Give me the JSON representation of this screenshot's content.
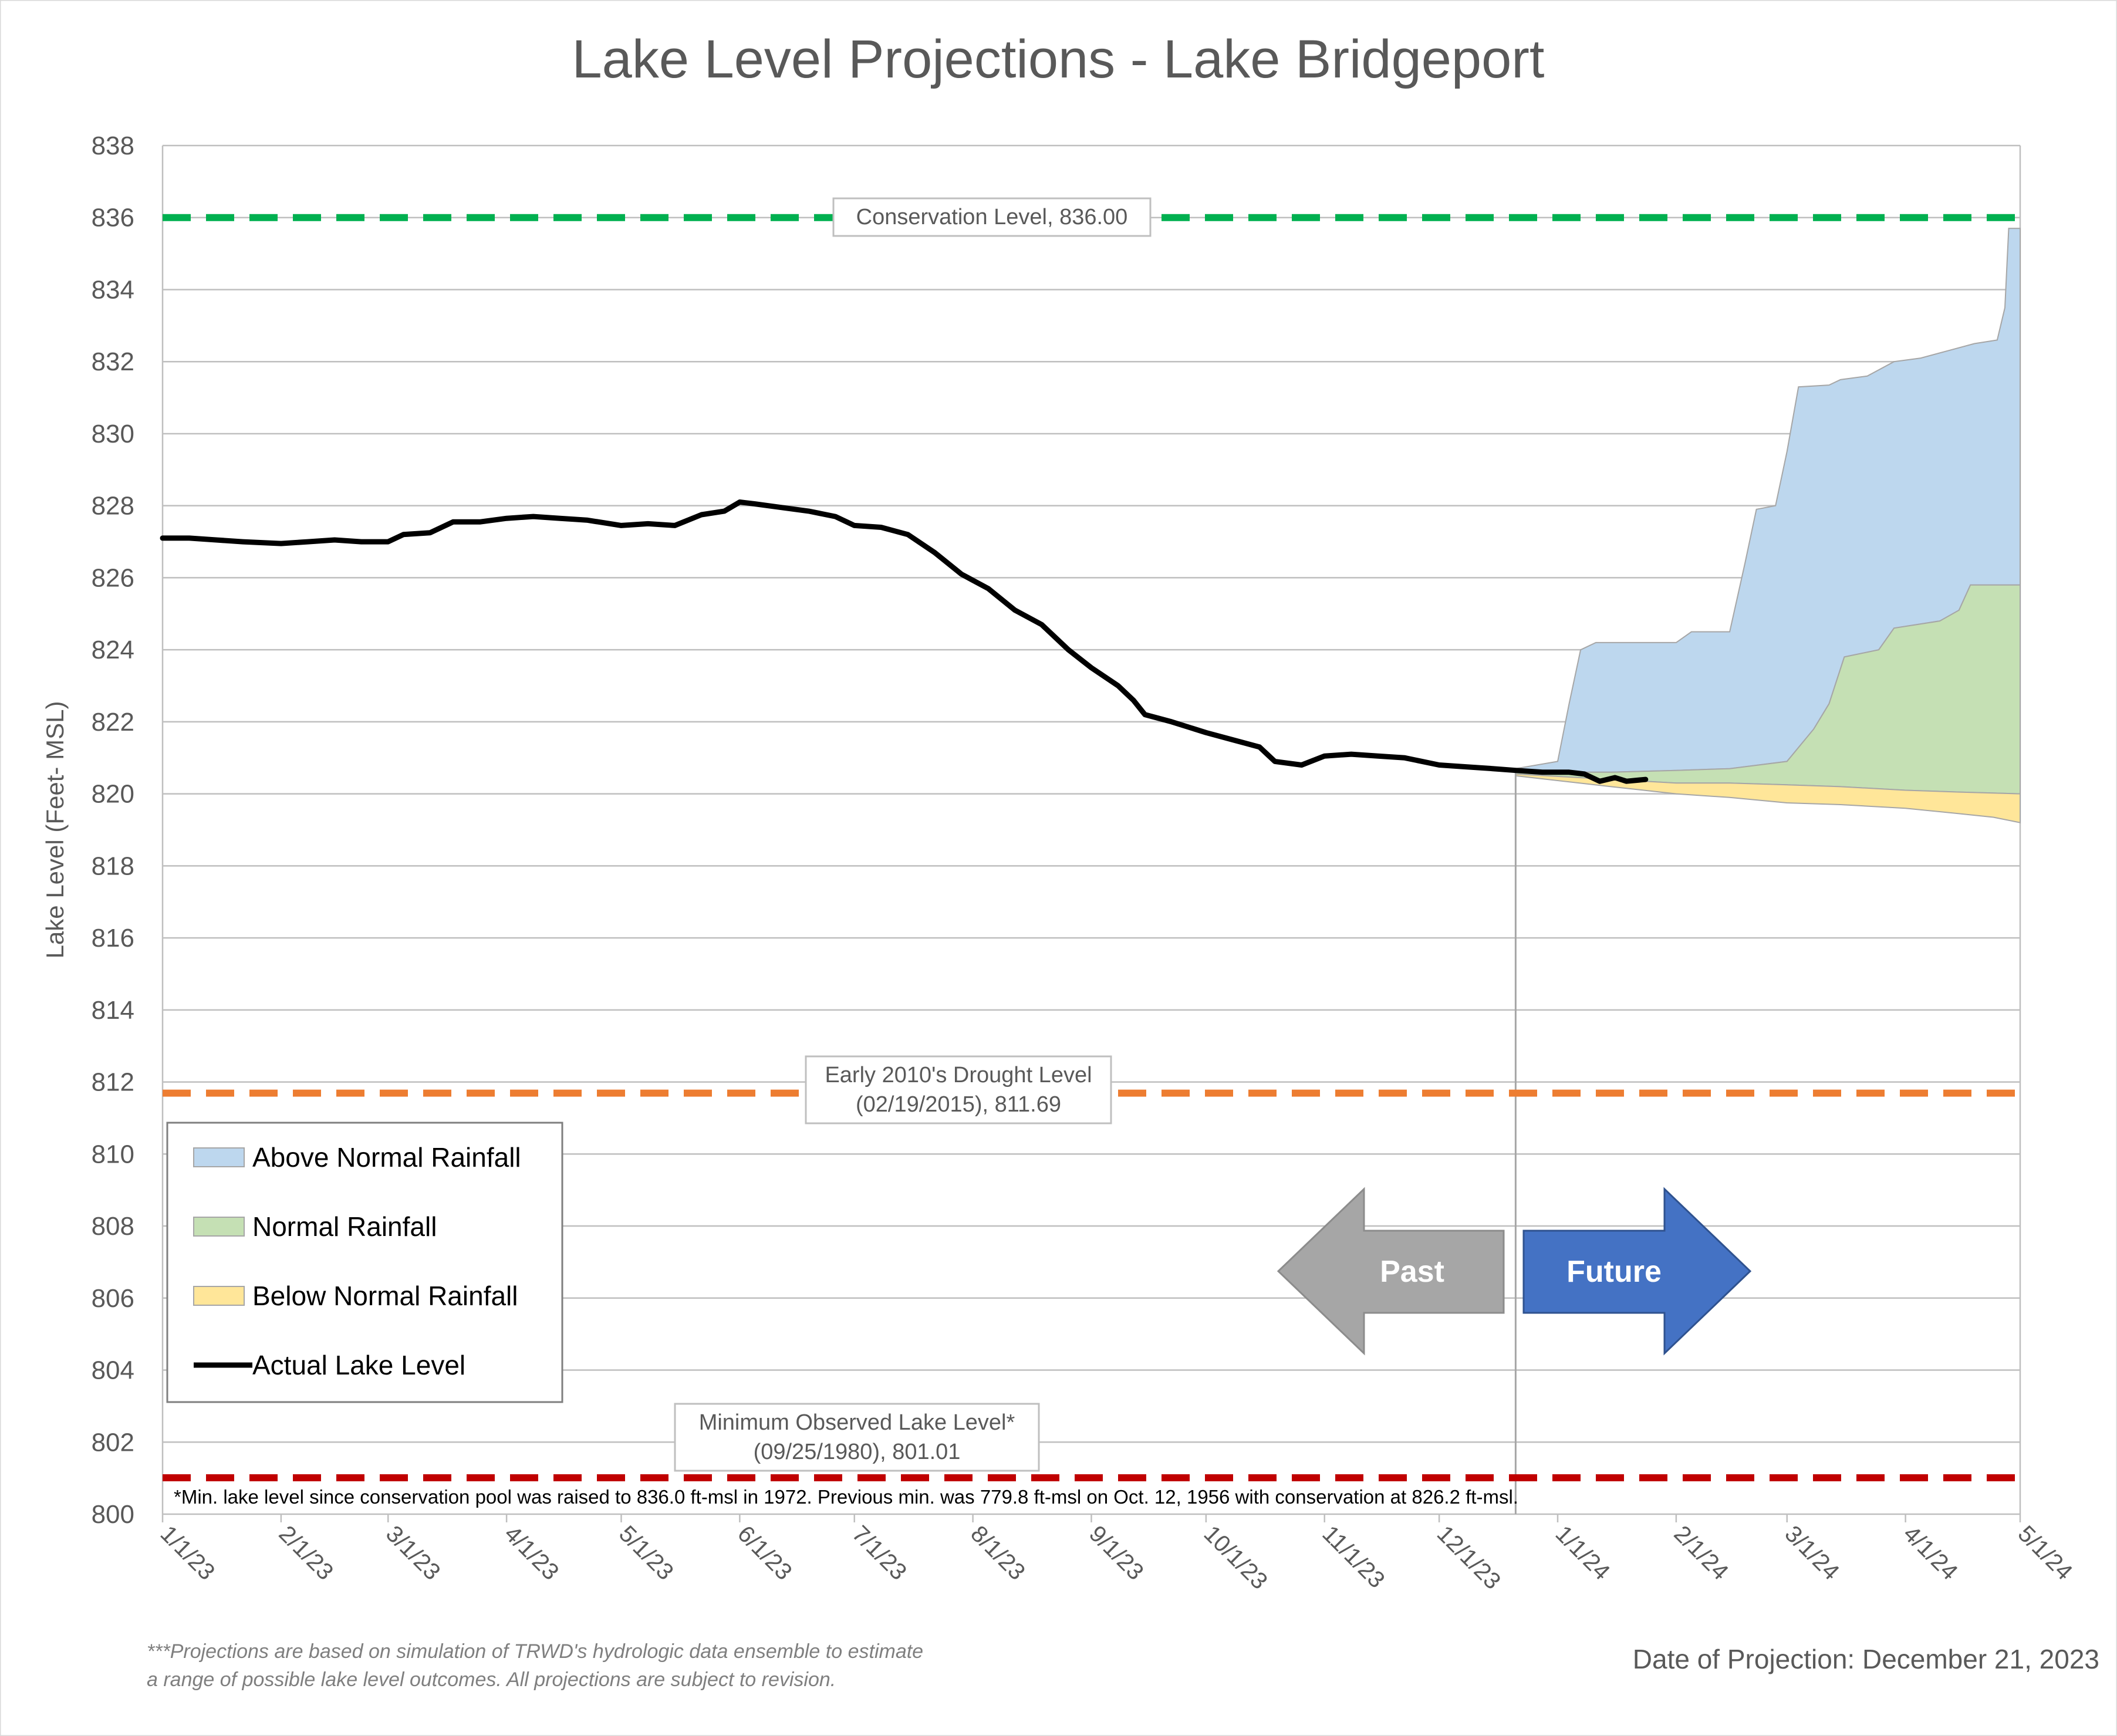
{
  "chart_data": {
    "type": "area",
    "title": "Lake Level Projections - Lake Bridgeport",
    "xlabel": "",
    "ylabel": "Lake Level (Feet- MSL)",
    "ylim": [
      800,
      838
    ],
    "yticks": [
      800,
      802,
      804,
      806,
      808,
      810,
      812,
      814,
      816,
      818,
      820,
      822,
      824,
      826,
      828,
      830,
      832,
      834,
      836,
      838
    ],
    "xlim": [
      "2023-01-01",
      "2024-05-01"
    ],
    "xticks": [
      {
        "date": "2023-01-01",
        "label": "1/1/23"
      },
      {
        "date": "2023-02-01",
        "label": "2/1/23"
      },
      {
        "date": "2023-03-01",
        "label": "3/1/23"
      },
      {
        "date": "2023-04-01",
        "label": "4/1/23"
      },
      {
        "date": "2023-05-01",
        "label": "5/1/23"
      },
      {
        "date": "2023-06-01",
        "label": "6/1/23"
      },
      {
        "date": "2023-07-01",
        "label": "7/1/23"
      },
      {
        "date": "2023-08-01",
        "label": "8/1/23"
      },
      {
        "date": "2023-09-01",
        "label": "9/1/23"
      },
      {
        "date": "2023-10-01",
        "label": "10/1/23"
      },
      {
        "date": "2023-11-01",
        "label": "11/1/23"
      },
      {
        "date": "2023-12-01",
        "label": "12/1/23"
      },
      {
        "date": "2024-01-01",
        "label": "1/1/24"
      },
      {
        "date": "2024-02-01",
        "label": "2/1/24"
      },
      {
        "date": "2024-03-01",
        "label": "3/1/24"
      },
      {
        "date": "2024-04-01",
        "label": "4/1/24"
      },
      {
        "date": "2024-05-01",
        "label": "5/1/24"
      }
    ],
    "grid": true,
    "legend_position": "lower-left",
    "legend": [
      {
        "label": "Above Normal Rainfall",
        "kind": "area",
        "color": "#bdd7ee"
      },
      {
        "label": "Normal Rainfall",
        "kind": "area",
        "color": "#c5e0b4"
      },
      {
        "label": "Below Normal Rainfall",
        "kind": "area",
        "color": "#ffe699"
      },
      {
        "label": "Actual Lake Level",
        "kind": "line",
        "color": "#000000"
      }
    ],
    "colors": {
      "above": "#bdd7ee",
      "normal": "#c5e0b4",
      "below": "#ffe699",
      "actual": "#000000",
      "conservation": "#00b050",
      "drought": "#ed7d31",
      "minimum": "#c00000",
      "past_arrow": "#a6a6a6",
      "future_arrow": "#4472c4"
    },
    "reference_lines": [
      {
        "name": "conservation",
        "y": 836.0,
        "label_lines": [
          "Conservation Level, 836.00"
        ]
      },
      {
        "name": "drought",
        "y": 811.69,
        "label_lines": [
          "Early 2010's Drought Level",
          "(02/19/2015), 811.69"
        ]
      },
      {
        "name": "minimum",
        "y": 801.01,
        "label_lines": [
          "Minimum Observed Lake Level*",
          "(09/25/1980), 801.01"
        ]
      }
    ],
    "projection_date": "2023-12-21",
    "series": [
      {
        "name": "Actual Lake Level",
        "type": "line",
        "points": [
          [
            "2023-01-01",
            827.1
          ],
          [
            "2023-01-08",
            827.1
          ],
          [
            "2023-01-15",
            827.05
          ],
          [
            "2023-01-22",
            827.0
          ],
          [
            "2023-02-01",
            826.95
          ],
          [
            "2023-02-08",
            827.0
          ],
          [
            "2023-02-15",
            827.05
          ],
          [
            "2023-02-22",
            827.0
          ],
          [
            "2023-03-01",
            827.0
          ],
          [
            "2023-03-05",
            827.2
          ],
          [
            "2023-03-12",
            827.25
          ],
          [
            "2023-03-18",
            827.55
          ],
          [
            "2023-03-25",
            827.55
          ],
          [
            "2023-04-01",
            827.65
          ],
          [
            "2023-04-08",
            827.7
          ],
          [
            "2023-04-15",
            827.65
          ],
          [
            "2023-04-22",
            827.6
          ],
          [
            "2023-05-01",
            827.45
          ],
          [
            "2023-05-08",
            827.5
          ],
          [
            "2023-05-15",
            827.45
          ],
          [
            "2023-05-22",
            827.75
          ],
          [
            "2023-05-28",
            827.85
          ],
          [
            "2023-06-01",
            828.1
          ],
          [
            "2023-06-05",
            828.05
          ],
          [
            "2023-06-12",
            827.95
          ],
          [
            "2023-06-19",
            827.85
          ],
          [
            "2023-06-26",
            827.7
          ],
          [
            "2023-07-01",
            827.45
          ],
          [
            "2023-07-08",
            827.4
          ],
          [
            "2023-07-15",
            827.2
          ],
          [
            "2023-07-22",
            826.7
          ],
          [
            "2023-07-29",
            826.1
          ],
          [
            "2023-08-05",
            825.7
          ],
          [
            "2023-08-12",
            825.1
          ],
          [
            "2023-08-19",
            824.7
          ],
          [
            "2023-08-26",
            824.0
          ],
          [
            "2023-09-01",
            823.5
          ],
          [
            "2023-09-08",
            823.0
          ],
          [
            "2023-09-12",
            822.6
          ],
          [
            "2023-09-15",
            822.2
          ],
          [
            "2023-09-22",
            822.0
          ],
          [
            "2023-10-01",
            821.7
          ],
          [
            "2023-10-08",
            821.5
          ],
          [
            "2023-10-15",
            821.3
          ],
          [
            "2023-10-19",
            820.9
          ],
          [
            "2023-10-26",
            820.8
          ],
          [
            "2023-11-01",
            821.05
          ],
          [
            "2023-11-08",
            821.1
          ],
          [
            "2023-11-15",
            821.05
          ],
          [
            "2023-11-22",
            821.0
          ],
          [
            "2023-12-01",
            820.8
          ],
          [
            "2023-12-08",
            820.75
          ],
          [
            "2023-12-15",
            820.7
          ],
          [
            "2023-12-21",
            820.65
          ],
          [
            "2023-12-28",
            820.6
          ],
          [
            "2024-01-04",
            820.6
          ],
          [
            "2024-01-08",
            820.55
          ],
          [
            "2024-01-12",
            820.35
          ],
          [
            "2024-01-16",
            820.45
          ],
          [
            "2024-01-19",
            820.35
          ],
          [
            "2024-01-24",
            820.4
          ]
        ]
      },
      {
        "name": "Above Normal Rainfall",
        "type": "band",
        "points": [
          [
            "2023-12-21",
            820.7
          ],
          [
            "2024-01-01",
            820.9
          ],
          [
            "2024-01-04",
            822.5
          ],
          [
            "2024-01-07",
            824.0
          ],
          [
            "2024-01-11",
            824.2
          ],
          [
            "2024-01-25",
            824.2
          ],
          [
            "2024-02-01",
            824.2
          ],
          [
            "2024-02-05",
            824.5
          ],
          [
            "2024-02-15",
            824.5
          ],
          [
            "2024-02-19",
            826.4
          ],
          [
            "2024-02-22",
            827.9
          ],
          [
            "2024-02-27",
            828.0
          ],
          [
            "2024-03-01",
            829.5
          ],
          [
            "2024-03-04",
            831.3
          ],
          [
            "2024-03-12",
            831.35
          ],
          [
            "2024-03-15",
            831.5
          ],
          [
            "2024-03-22",
            831.6
          ],
          [
            "2024-03-29",
            832.0
          ],
          [
            "2024-04-05",
            832.1
          ],
          [
            "2024-04-12",
            832.3
          ],
          [
            "2024-04-19",
            832.5
          ],
          [
            "2024-04-25",
            832.6
          ],
          [
            "2024-04-27",
            833.5
          ],
          [
            "2024-04-28",
            835.7
          ],
          [
            "2024-05-01",
            835.7
          ]
        ]
      },
      {
        "name": "Normal Rainfall",
        "type": "band",
        "points": [
          [
            "2023-12-21",
            820.6
          ],
          [
            "2024-01-15",
            820.6
          ],
          [
            "2024-02-01",
            820.65
          ],
          [
            "2024-02-15",
            820.7
          ],
          [
            "2024-03-01",
            820.9
          ],
          [
            "2024-03-08",
            821.8
          ],
          [
            "2024-03-12",
            822.5
          ],
          [
            "2024-03-16",
            823.8
          ],
          [
            "2024-03-25",
            824.0
          ],
          [
            "2024-03-29",
            824.6
          ],
          [
            "2024-04-10",
            824.8
          ],
          [
            "2024-04-15",
            825.1
          ],
          [
            "2024-04-18",
            825.8
          ],
          [
            "2024-05-01",
            825.8
          ]
        ]
      },
      {
        "name": "Normal Rainfall (lower bound)",
        "type": "band",
        "points": [
          [
            "2023-12-21",
            820.55
          ],
          [
            "2024-01-15",
            820.4
          ],
          [
            "2024-02-01",
            820.3
          ],
          [
            "2024-02-15",
            820.3
          ],
          [
            "2024-03-01",
            820.25
          ],
          [
            "2024-03-15",
            820.2
          ],
          [
            "2024-04-01",
            820.1
          ],
          [
            "2024-04-15",
            820.05
          ],
          [
            "2024-05-01",
            820.0
          ]
        ]
      },
      {
        "name": "Below Normal Rainfall",
        "type": "band",
        "points": [
          [
            "2023-12-21",
            820.5
          ],
          [
            "2024-01-15",
            820.2
          ],
          [
            "2024-02-01",
            820.0
          ],
          [
            "2024-02-15",
            819.9
          ],
          [
            "2024-03-01",
            819.75
          ],
          [
            "2024-03-15",
            819.7
          ],
          [
            "2024-04-01",
            819.6
          ],
          [
            "2024-04-15",
            819.45
          ],
          [
            "2024-04-24",
            819.35
          ],
          [
            "2024-05-01",
            819.2
          ]
        ]
      }
    ],
    "arrows": {
      "past_label": "Past",
      "future_label": "Future"
    }
  },
  "footnotes": {
    "min_level_note": "*Min. lake level since conservation pool was raised to 836.0 ft-msl in 1972.  Previous min. was 779.8 ft-msl on Oct. 12, 1956 with conservation at 826.2 ft-msl.",
    "projection_note_1": "***Projections are based on simulation of TRWD's hydrologic data ensemble to estimate",
    "projection_note_2": "a range of possible lake level outcomes.  All projections are subject to revision.",
    "projection_date_text": "Date of Projection: December 21, 2023"
  }
}
